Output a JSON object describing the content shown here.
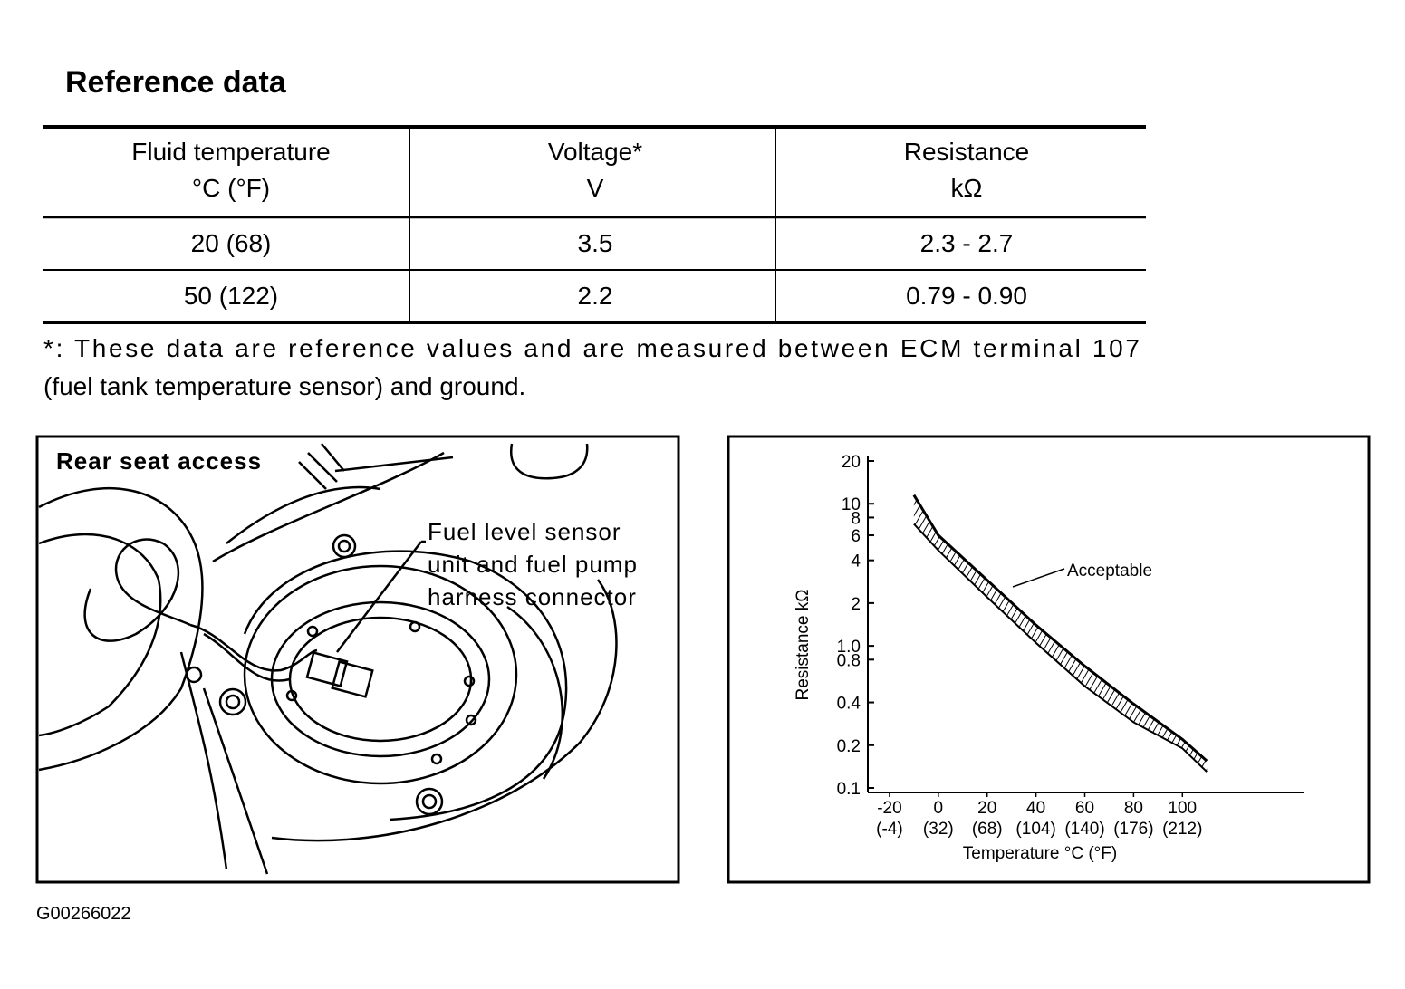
{
  "header": {
    "title": "Reference data"
  },
  "table": {
    "header": [
      [
        "Fluid temperature",
        "°C (°F)"
      ],
      [
        "Voltage*",
        "V"
      ],
      [
        "Resistance",
        "kΩ"
      ]
    ],
    "rows": [
      [
        "20 (68)",
        "3.5",
        "2.3 - 2.7"
      ],
      [
        "50 (122)",
        "2.2",
        "0.79 - 0.90"
      ]
    ]
  },
  "footnote": [
    "*: These data are reference values and are measured between ECM terminal 107",
    "(fuel tank temperature sensor) and ground."
  ],
  "diagram": {
    "labels": [
      "Rear seat access"
    ],
    "callout": [
      "Fuel level sensor",
      "unit and fuel pump",
      "harness connector"
    ]
  },
  "chart_data": {
    "type": "band",
    "xlabel": "Temperature °C (°F)",
    "ylabel": "Resistance  kΩ",
    "annotation": "Acceptable",
    "log_y": true,
    "xlim": [
      -30,
      150
    ],
    "ylim": [
      0.1,
      20
    ],
    "xticks": [
      -20,
      0,
      20,
      40,
      60,
      80,
      100
    ],
    "xtick_labels_f": [
      "(-4)",
      "(32)",
      "(68)",
      "(104)",
      "(140)",
      "(176)",
      "(212)"
    ],
    "yticks": [
      0.1,
      0.2,
      0.4,
      {
        "value": 0.8,
        "label": "0.8"
      },
      {
        "value": 1,
        "label": "1.0"
      },
      2,
      4,
      6,
      8,
      10,
      20
    ],
    "color": "#000000",
    "series": [
      {
        "name": "Acceptable",
        "x": [
          -10,
          0,
          20,
          40,
          60,
          80,
          100,
          110
        ],
        "values": [
          11.5,
          6.0,
          2.9,
          1.4,
          0.72,
          0.39,
          0.22,
          0.155
        ],
        "lower": [
          7.2,
          4.7,
          2.2,
          1.05,
          0.52,
          0.29,
          0.19,
          0.13
        ]
      }
    ]
  },
  "figure_id": "G00266022"
}
